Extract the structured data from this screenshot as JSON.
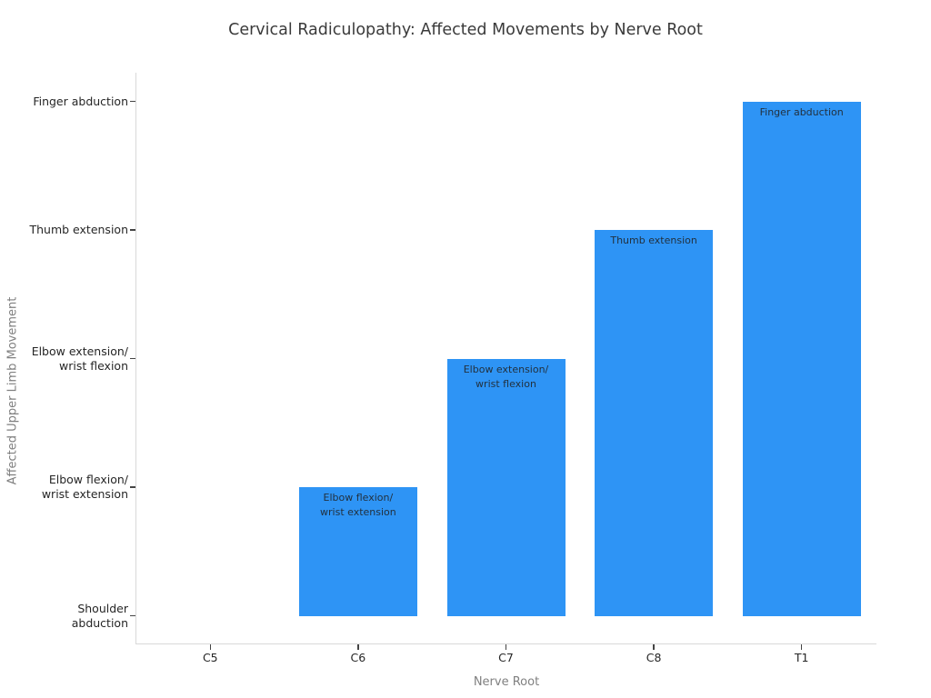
{
  "chart_data": {
    "type": "bar",
    "title": "Cervical Radiculopathy: Affected Movements by Nerve Root",
    "xlabel": "Nerve Root",
    "ylabel": "Affected Upper Limb Movement",
    "categories": [
      "C5",
      "C6",
      "C7",
      "C8",
      "T1"
    ],
    "values": [
      0,
      1,
      2,
      3,
      4
    ],
    "movement_by_root": {
      "C5": "Shoulder abduction",
      "C6": "Elbow flexion/wrist extension",
      "C7": "Elbow extension/wrist flexion",
      "C8": "Thumb extension",
      "T1": "Finger abduction"
    },
    "bar_labels": [
      "",
      "Elbow flexion/\nwrist extension",
      "Elbow extension/\nwrist flexion",
      "Thumb extension",
      "Finger abduction"
    ],
    "ytick_values": [
      0,
      1,
      2,
      3,
      4
    ],
    "ytick_labels": [
      "Shoulder\nabduction",
      "Elbow flexion/\nwrist extension",
      "Elbow extension/\nwrist flexion",
      "Thumb extension",
      "Finger abduction"
    ],
    "ylim": [
      -0.2,
      4.22
    ],
    "grid": false,
    "legend": null,
    "colors": {
      "bar": "#2e94f5",
      "bar_label": "#22313f",
      "spine": "#d9d9d9",
      "tick": "#444444",
      "tick_label": "#262626",
      "axis_title": "#808080",
      "title": "#3a3a3a",
      "background": "#ffffff"
    }
  }
}
